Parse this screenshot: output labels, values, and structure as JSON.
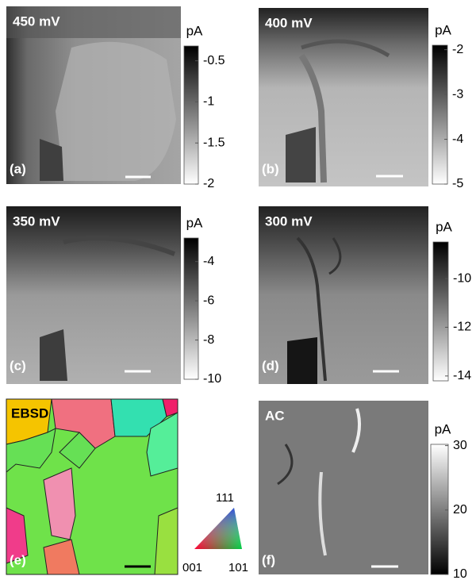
{
  "panels": [
    {
      "title": "450 mV",
      "label": "(a)",
      "colorbar": {
        "unit": "pA",
        "cmap": "gray_r",
        "lim": [
          -2,
          -0.32
        ],
        "ticks": [
          -0.5,
          -1,
          -1.5,
          -2
        ]
      }
    },
    {
      "title": "400 mV",
      "label": "(b)",
      "colorbar": {
        "unit": "pA",
        "cmap": "gray_r",
        "lim": [
          -5,
          -1.9
        ],
        "ticks": [
          -2,
          -3,
          -4,
          -5
        ]
      }
    },
    {
      "title": "350 mV",
      "label": "(c)",
      "colorbar": {
        "unit": "pA",
        "cmap": "gray_r",
        "lim": [
          -10,
          -2.8
        ],
        "ticks": [
          -4,
          -6,
          -8,
          -10
        ]
      }
    },
    {
      "title": "300 mV",
      "label": "(d)",
      "colorbar": {
        "unit": "pA",
        "cmap": "gray_r",
        "lim": [
          -14.2,
          -8.5
        ],
        "ticks": [
          -10,
          -12,
          -14
        ]
      }
    },
    {
      "title": "EBSD",
      "label": "(e)",
      "legend": {
        "labels": [
          "111",
          "001",
          "101"
        ]
      }
    },
    {
      "title": "AC",
      "label": "(f)",
      "colorbar": {
        "unit": "pA",
        "cmap": "gray",
        "lim": [
          10,
          30.2
        ],
        "ticks": [
          30,
          20,
          10
        ]
      }
    }
  ]
}
